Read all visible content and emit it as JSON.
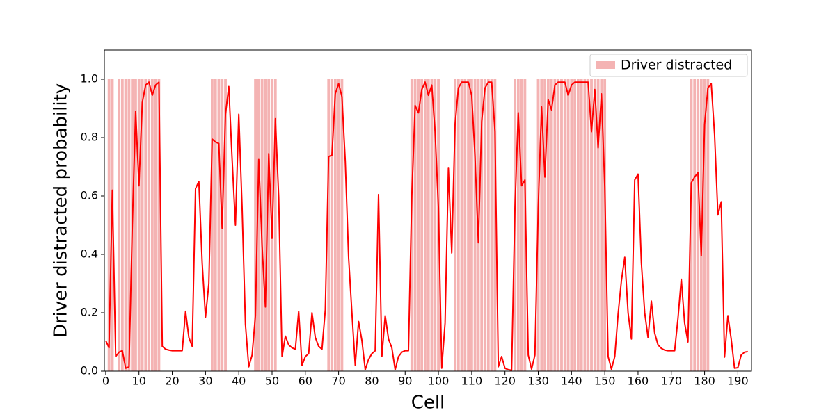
{
  "chart_data": {
    "type": "line",
    "x_label": "Cell",
    "y_label": "Driver distracted probability",
    "x": [
      0,
      1,
      2,
      3,
      4,
      5,
      6,
      7,
      8,
      9,
      10,
      11,
      12,
      13,
      14,
      15,
      16,
      17,
      18,
      19,
      20,
      21,
      22,
      23,
      24,
      25,
      26,
      27,
      28,
      29,
      30,
      31,
      32,
      33,
      34,
      35,
      36,
      37,
      38,
      39,
      40,
      41,
      42,
      43,
      44,
      45,
      46,
      47,
      48,
      49,
      50,
      51,
      52,
      53,
      54,
      55,
      56,
      57,
      58,
      59,
      60,
      61,
      62,
      63,
      64,
      65,
      66,
      67,
      68,
      69,
      70,
      71,
      72,
      73,
      74,
      75,
      76,
      77,
      78,
      79,
      80,
      81,
      82,
      83,
      84,
      85,
      86,
      87,
      88,
      89,
      90,
      91,
      92,
      93,
      94,
      95,
      96,
      97,
      98,
      99,
      100,
      101,
      102,
      103,
      104,
      105,
      106,
      107,
      108,
      109,
      110,
      111,
      112,
      113,
      114,
      115,
      116,
      117,
      118,
      119,
      120,
      121,
      122,
      123,
      124,
      125,
      126,
      127,
      128,
      129,
      130,
      131,
      132,
      133,
      134,
      135,
      136,
      137,
      138,
      139,
      140,
      141,
      142,
      143,
      144,
      145,
      146,
      147,
      148,
      149,
      150,
      151,
      152,
      153,
      154,
      155,
      156,
      157,
      158,
      159,
      160,
      161,
      162,
      163,
      164,
      165,
      166,
      167,
      168,
      169,
      170,
      171,
      172,
      173,
      174,
      175,
      176,
      177,
      178,
      179,
      180,
      181,
      182,
      183,
      184,
      185,
      186,
      187,
      188,
      189,
      190,
      191,
      192,
      193
    ],
    "series": [
      {
        "color": "#ff0000",
        "values": [
          0.105,
          0.08,
          0.62,
          0.05,
          0.065,
          0.07,
          0.01,
          0.015,
          0.5,
          0.89,
          0.635,
          0.92,
          0.98,
          0.99,
          0.945,
          0.98,
          0.99,
          0.085,
          0.075,
          0.072,
          0.07,
          0.07,
          0.07,
          0.07,
          0.205,
          0.115,
          0.085,
          0.625,
          0.65,
          0.37,
          0.185,
          0.3,
          0.795,
          0.785,
          0.78,
          0.49,
          0.88,
          0.975,
          0.725,
          0.5,
          0.88,
          0.56,
          0.16,
          0.015,
          0.055,
          0.19,
          0.725,
          0.43,
          0.22,
          0.745,
          0.455,
          0.865,
          0.595,
          0.05,
          0.12,
          0.09,
          0.08,
          0.075,
          0.205,
          0.02,
          0.05,
          0.06,
          0.2,
          0.115,
          0.085,
          0.075,
          0.21,
          0.735,
          0.74,
          0.95,
          0.985,
          0.94,
          0.72,
          0.39,
          0.2,
          0.02,
          0.17,
          0.105,
          0.005,
          0.04,
          0.06,
          0.07,
          0.605,
          0.05,
          0.19,
          0.11,
          0.08,
          0.005,
          0.05,
          0.065,
          0.07,
          0.07,
          0.6,
          0.91,
          0.885,
          0.965,
          0.99,
          0.945,
          0.98,
          0.82,
          0.56,
          0.01,
          0.165,
          0.695,
          0.405,
          0.845,
          0.97,
          0.99,
          0.99,
          0.99,
          0.945,
          0.735,
          0.44,
          0.855,
          0.97,
          0.99,
          0.99,
          0.82,
          0.015,
          0.05,
          0.01,
          0.005,
          0.003,
          0.56,
          0.885,
          0.635,
          0.655,
          0.055,
          0.007,
          0.055,
          0.56,
          0.905,
          0.665,
          0.93,
          0.895,
          0.98,
          0.99,
          0.99,
          0.99,
          0.945,
          0.98,
          0.99,
          0.99,
          0.99,
          0.99,
          0.99,
          0.82,
          0.965,
          0.765,
          0.95,
          0.63,
          0.05,
          0.007,
          0.05,
          0.195,
          0.31,
          0.39,
          0.2,
          0.11,
          0.655,
          0.675,
          0.37,
          0.2,
          0.115,
          0.24,
          0.13,
          0.09,
          0.078,
          0.072,
          0.07,
          0.07,
          0.07,
          0.18,
          0.315,
          0.165,
          0.1,
          0.645,
          0.665,
          0.68,
          0.395,
          0.845,
          0.97,
          0.985,
          0.81,
          0.535,
          0.58,
          0.048,
          0.19,
          0.11,
          0.01,
          0.012,
          0.055,
          0.065,
          0.067
        ]
      }
    ],
    "bars": {
      "name": "Driver distracted",
      "color": "#f4b3b3",
      "x": [
        1,
        2,
        4,
        5,
        6,
        7,
        8,
        9,
        10,
        11,
        12,
        13,
        14,
        15,
        16,
        32,
        33,
        34,
        35,
        36,
        45,
        46,
        47,
        48,
        49,
        50,
        51,
        67,
        68,
        69,
        70,
        71,
        92,
        93,
        94,
        95,
        96,
        97,
        98,
        99,
        100,
        105,
        106,
        107,
        108,
        109,
        110,
        111,
        112,
        113,
        114,
        115,
        116,
        117,
        123,
        124,
        125,
        126,
        130,
        131,
        132,
        133,
        134,
        135,
        136,
        137,
        138,
        139,
        140,
        141,
        142,
        143,
        144,
        145,
        146,
        147,
        148,
        149,
        150,
        176,
        177,
        178,
        179,
        180,
        181
      ],
      "values": [
        1,
        1,
        1,
        1,
        1,
        1,
        1,
        1,
        1,
        1,
        1,
        1,
        1,
        1,
        1,
        1,
        1,
        1,
        1,
        1,
        1,
        1,
        1,
        1,
        1,
        1,
        1,
        1,
        1,
        1,
        1,
        1,
        1,
        1,
        1,
        1,
        1,
        1,
        1,
        1,
        1,
        1,
        1,
        1,
        1,
        1,
        1,
        1,
        1,
        1,
        1,
        1,
        1,
        1,
        1,
        1,
        1,
        1,
        1,
        1,
        1,
        1,
        1,
        1,
        1,
        1,
        1,
        1,
        1,
        1,
        1,
        1,
        1,
        1,
        1,
        1,
        1,
        1,
        1,
        1,
        1,
        1,
        1,
        1,
        1
      ]
    },
    "xlim": [
      -0.4,
      194.1
    ],
    "ylim": [
      0,
      1.1
    ],
    "xticks": [
      0,
      10,
      20,
      30,
      40,
      50,
      60,
      70,
      80,
      90,
      100,
      110,
      120,
      130,
      140,
      150,
      160,
      170,
      180,
      190
    ],
    "yticks": [
      {
        "value": 0,
        "label": "0.0"
      },
      0.2,
      0.4,
      0.6,
      0.8,
      {
        "value": 1,
        "label": "1.0"
      }
    ],
    "legend": "upper right"
  }
}
